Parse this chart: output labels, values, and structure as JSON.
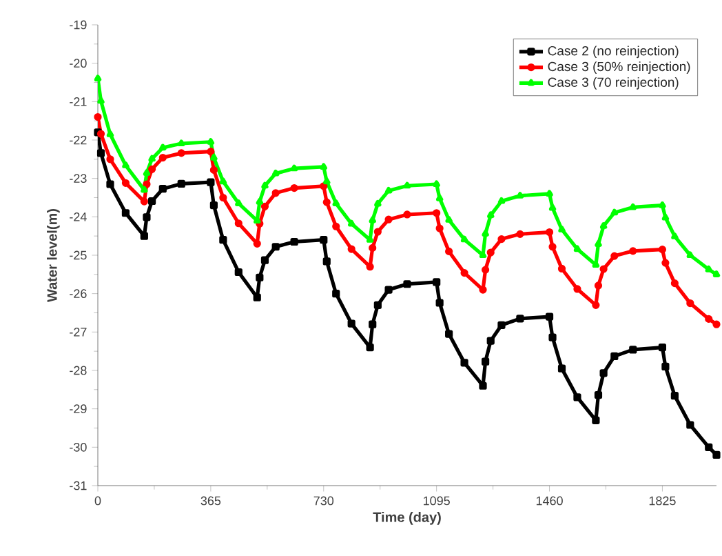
{
  "chart_data": {
    "type": "line",
    "xlabel": "Time (day)",
    "ylabel": "Water level(m)",
    "xlim": [
      0,
      2000
    ],
    "xticks": [
      0,
      365,
      730,
      1095,
      1460,
      1825
    ],
    "ylim": [
      -31,
      -19
    ],
    "yticks": [
      -31,
      -30,
      -29,
      -28,
      -27,
      -26,
      -25,
      -24,
      -23,
      -22,
      -21,
      -20,
      -19
    ],
    "grid": false,
    "legend": "top right",
    "x": [
      0,
      10,
      40,
      90,
      150,
      158,
      175,
      210,
      270,
      365,
      375,
      405,
      455,
      515,
      523,
      540,
      575,
      635,
      730,
      740,
      770,
      820,
      880,
      888,
      905,
      940,
      1000,
      1095,
      1105,
      1135,
      1185,
      1245,
      1253,
      1270,
      1305,
      1365,
      1460,
      1470,
      1500,
      1550,
      1610,
      1618,
      1635,
      1670,
      1730,
      1825,
      1835,
      1865,
      1915,
      1975,
      2000
    ],
    "series": [
      {
        "name": "Case 2 (no reinjection)",
        "color": "#000000",
        "marker": "square",
        "values": [
          -21.8,
          -22.34,
          -23.15,
          -23.9,
          -24.5,
          -24.01,
          -23.59,
          -23.27,
          -23.14,
          -23.1,
          -23.7,
          -24.6,
          -25.44,
          -26.1,
          -25.58,
          -25.13,
          -24.78,
          -24.65,
          -24.6,
          -25.16,
          -26.0,
          -26.78,
          -27.4,
          -26.8,
          -26.3,
          -25.9,
          -25.75,
          -25.7,
          -26.24,
          -27.05,
          -27.8,
          -28.4,
          -27.77,
          -27.23,
          -26.82,
          -26.65,
          -26.6,
          -27.14,
          -27.95,
          -28.7,
          -29.3,
          -28.64,
          -28.07,
          -27.63,
          -27.46,
          -27.4,
          -27.9,
          -28.66,
          -29.42,
          -30.0,
          -30.2
        ]
      },
      {
        "name": "Case 3 (50% reinjection)",
        "color": "#ff0000",
        "marker": "circle",
        "values": [
          -21.4,
          -21.84,
          -22.5,
          -23.12,
          -23.6,
          -23.15,
          -22.76,
          -22.46,
          -22.34,
          -22.3,
          -22.78,
          -23.5,
          -24.17,
          -24.7,
          -24.18,
          -23.73,
          -23.38,
          -23.25,
          -23.2,
          -23.62,
          -24.25,
          -24.84,
          -25.3,
          -24.81,
          -24.39,
          -24.07,
          -23.94,
          -23.9,
          -24.3,
          -24.9,
          -25.46,
          -25.9,
          -25.38,
          -24.93,
          -24.58,
          -24.45,
          -24.4,
          -24.78,
          -25.35,
          -25.88,
          -26.3,
          -25.79,
          -25.36,
          -25.02,
          -24.89,
          -24.85,
          -25.2,
          -25.73,
          -26.25,
          -26.66,
          -26.8
        ]
      },
      {
        "name": "Case 3 (70 reinjection)",
        "color": "#00ff00",
        "marker": "triangle",
        "values": [
          -20.4,
          -20.98,
          -21.85,
          -22.66,
          -23.3,
          -22.86,
          -22.49,
          -22.2,
          -22.09,
          -22.05,
          -22.46,
          -23.08,
          -23.65,
          -24.1,
          -23.61,
          -23.19,
          -22.87,
          -22.74,
          -22.7,
          -23.08,
          -23.65,
          -24.18,
          -24.6,
          -24.09,
          -23.66,
          -23.32,
          -23.19,
          -23.15,
          -23.52,
          -24.08,
          -24.59,
          -25.0,
          -24.44,
          -23.96,
          -23.59,
          -23.45,
          -23.4,
          -23.77,
          -24.33,
          -24.84,
          -25.25,
          -24.71,
          -24.24,
          -23.89,
          -23.75,
          -23.7,
          -24.02,
          -24.51,
          -25.0,
          -25.37,
          -25.5
        ]
      }
    ]
  }
}
